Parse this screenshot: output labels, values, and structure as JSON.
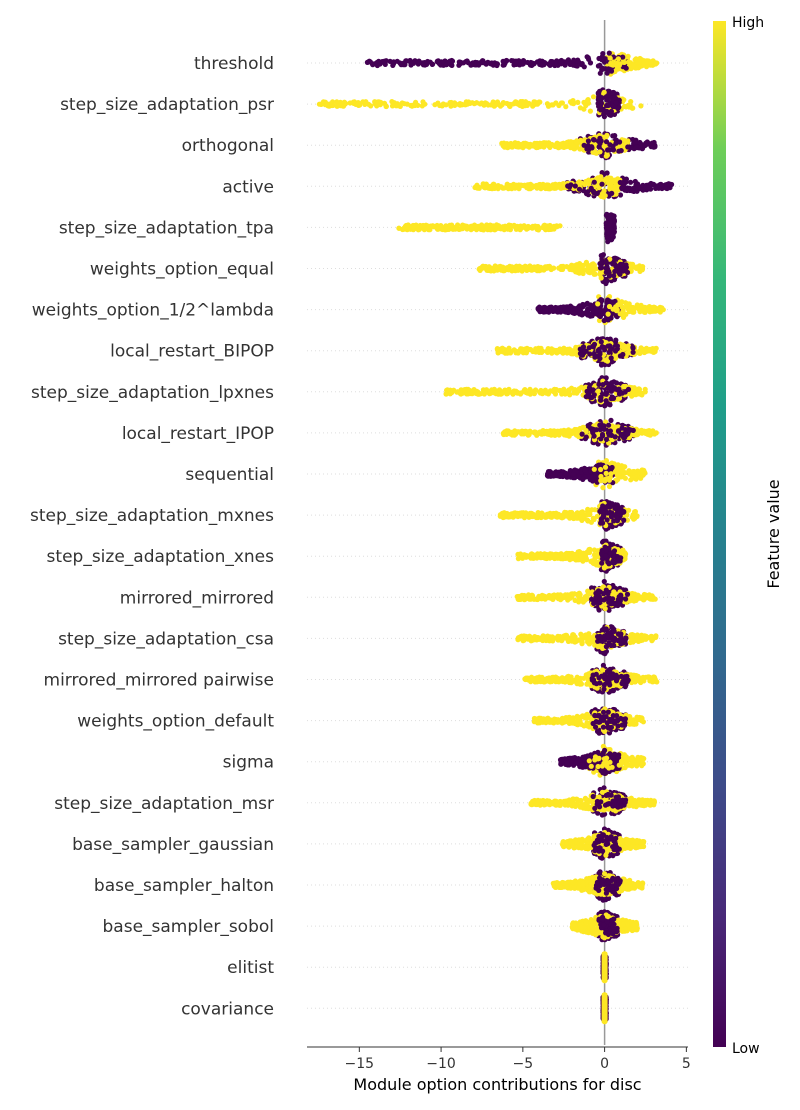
{
  "chart_data": {
    "type": "scatter",
    "subtype": "beeswarm",
    "xlabel": "Module option contributions for disc",
    "xlim": [
      -18.2,
      5.1
    ],
    "xticks": [
      -15,
      -10,
      -5,
      0,
      5
    ],
    "xtick_labels": [
      "−15",
      "−10",
      "−5",
      "0",
      "5"
    ],
    "colorbar": {
      "title": "Feature value",
      "high_label": "High",
      "low_label": "Low",
      "colormap": "viridis"
    },
    "colors": {
      "high": "#fde725",
      "low": "#440154",
      "zero_line": "#999999",
      "grid": "#dddddd"
    },
    "features": [
      {
        "name": "threshold",
        "high_range": [
          0.1,
          3.2
        ],
        "low_range": [
          -14.6,
          1.5
        ],
        "dominant": "low"
      },
      {
        "name": "step_size_adaptation_psr",
        "high_range": [
          -17.5,
          2.3
        ],
        "low_range": [
          -0.4,
          0.9
        ],
        "dominant": "high"
      },
      {
        "name": "orthogonal",
        "high_range": [
          -6.3,
          1.5
        ],
        "low_range": [
          -1.5,
          3.1
        ],
        "dominant": "high"
      },
      {
        "name": "active",
        "high_range": [
          -8.0,
          1.0
        ],
        "low_range": [
          -2.3,
          4.1
        ],
        "dominant": "high"
      },
      {
        "name": "step_size_adaptation_tpa",
        "high_range": [
          -12.6,
          -2.7
        ],
        "low_range": [
          0.1,
          0.6
        ],
        "dominant": "high"
      },
      {
        "name": "weights_option_equal",
        "high_range": [
          -7.7,
          2.4
        ],
        "low_range": [
          -0.3,
          1.4
        ],
        "dominant": "high"
      },
      {
        "name": "weights_option_1/2^lambda",
        "high_range": [
          -0.5,
          3.6
        ],
        "low_range": [
          -4.1,
          0.9
        ],
        "dominant": "low"
      },
      {
        "name": "local_restart_BIPOP",
        "high_range": [
          -6.6,
          3.2
        ],
        "low_range": [
          -1.5,
          1.8
        ],
        "dominant": "high"
      },
      {
        "name": "step_size_adaptation_lpxnes",
        "high_range": [
          -9.8,
          2.6
        ],
        "low_range": [
          -1.2,
          1.5
        ],
        "dominant": "high"
      },
      {
        "name": "local_restart_IPOP",
        "high_range": [
          -6.2,
          3.2
        ],
        "low_range": [
          -1.5,
          1.8
        ],
        "dominant": "high"
      },
      {
        "name": "sequential",
        "high_range": [
          -0.8,
          2.5
        ],
        "low_range": [
          -3.5,
          0.5
        ],
        "dominant": "low"
      },
      {
        "name": "step_size_adaptation_mxnes",
        "high_range": [
          -6.4,
          2.0
        ],
        "low_range": [
          -0.3,
          1.2
        ],
        "dominant": "high"
      },
      {
        "name": "step_size_adaptation_xnes",
        "high_range": [
          -5.3,
          1.3
        ],
        "low_range": [
          -0.2,
          1.0
        ],
        "dominant": "high"
      },
      {
        "name": "mirrored_mirrored",
        "high_range": [
          -5.4,
          3.1
        ],
        "low_range": [
          -0.8,
          1.4
        ],
        "dominant": "high"
      },
      {
        "name": "step_size_adaptation_csa",
        "high_range": [
          -5.3,
          3.2
        ],
        "low_range": [
          -0.5,
          1.3
        ],
        "dominant": "high"
      },
      {
        "name": "mirrored_mirrored pairwise",
        "high_range": [
          -4.9,
          3.2
        ],
        "low_range": [
          -0.8,
          1.5
        ],
        "dominant": "high"
      },
      {
        "name": "weights_option_default",
        "high_range": [
          -4.3,
          2.4
        ],
        "low_range": [
          -0.8,
          1.3
        ],
        "dominant": "high"
      },
      {
        "name": "sigma",
        "high_range": [
          -1.0,
          2.4
        ],
        "low_range": [
          -2.7,
          0.9
        ],
        "dominant": "low"
      },
      {
        "name": "step_size_adaptation_msr",
        "high_range": [
          -4.5,
          3.1
        ],
        "low_range": [
          -0.7,
          1.3
        ],
        "dominant": "high"
      },
      {
        "name": "base_sampler_gaussian",
        "high_range": [
          -2.6,
          2.4
        ],
        "low_range": [
          -0.7,
          0.9
        ],
        "dominant": "high"
      },
      {
        "name": "base_sampler_halton",
        "high_range": [
          -3.2,
          2.4
        ],
        "low_range": [
          -0.6,
          1.0
        ],
        "dominant": "high"
      },
      {
        "name": "base_sampler_sobol",
        "high_range": [
          -2.0,
          2.0
        ],
        "low_range": [
          -0.4,
          0.8
        ],
        "dominant": "high"
      },
      {
        "name": "elitist",
        "high_range": [
          0.0,
          0.0
        ],
        "low_range": [
          -0.1,
          0.1
        ],
        "dominant": "low"
      },
      {
        "name": "covariance",
        "high_range": [
          0.0,
          0.0
        ],
        "low_range": [
          -0.1,
          0.1
        ],
        "dominant": "low"
      }
    ]
  }
}
